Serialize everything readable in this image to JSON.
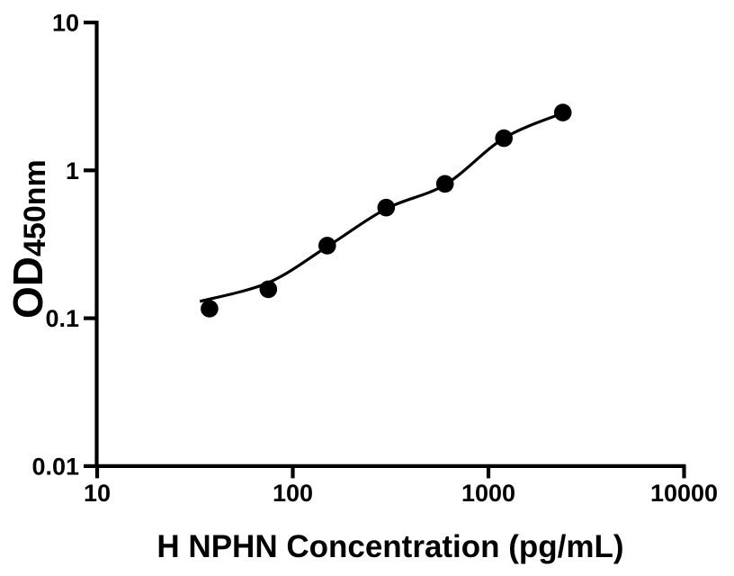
{
  "chart_data": {
    "type": "scatter",
    "title": "",
    "xlabel": "H NPHN Concentration (pg/mL)",
    "ylabel": "OD",
    "ylabel_subscript": "450nm",
    "x_scale": "log",
    "y_scale": "log",
    "xlim": [
      10,
      10000
    ],
    "ylim": [
      0.01,
      10
    ],
    "grid": false,
    "legend": "none",
    "x_ticks": [
      {
        "value": 10,
        "label": "10"
      },
      {
        "value": 100,
        "label": "100"
      },
      {
        "value": 1000,
        "label": "1000"
      },
      {
        "value": 10000,
        "label": "10000"
      }
    ],
    "y_ticks": [
      {
        "value": 10,
        "label": "10"
      },
      {
        "value": 1,
        "label": "1"
      },
      {
        "value": 0.1,
        "label": "0.1"
      },
      {
        "value": 0.01,
        "label": "0.01"
      }
    ],
    "points": [
      {
        "x": 37.5,
        "y": 0.116
      },
      {
        "x": 75,
        "y": 0.157
      },
      {
        "x": 150,
        "y": 0.31
      },
      {
        "x": 300,
        "y": 0.56
      },
      {
        "x": 600,
        "y": 0.81
      },
      {
        "x": 1200,
        "y": 1.65
      },
      {
        "x": 2400,
        "y": 2.46
      }
    ],
    "fit_curve": [
      {
        "x": 33.5,
        "y": 0.13
      },
      {
        "x": 75,
        "y": 0.174
      },
      {
        "x": 150,
        "y": 0.305
      },
      {
        "x": 300,
        "y": 0.55
      },
      {
        "x": 600,
        "y": 0.8
      },
      {
        "x": 1200,
        "y": 1.65
      },
      {
        "x": 2400,
        "y": 2.44
      }
    ],
    "colors": {
      "marker": "#000000",
      "line": "#000000",
      "axis": "#000000",
      "background": "#ffffff"
    }
  }
}
